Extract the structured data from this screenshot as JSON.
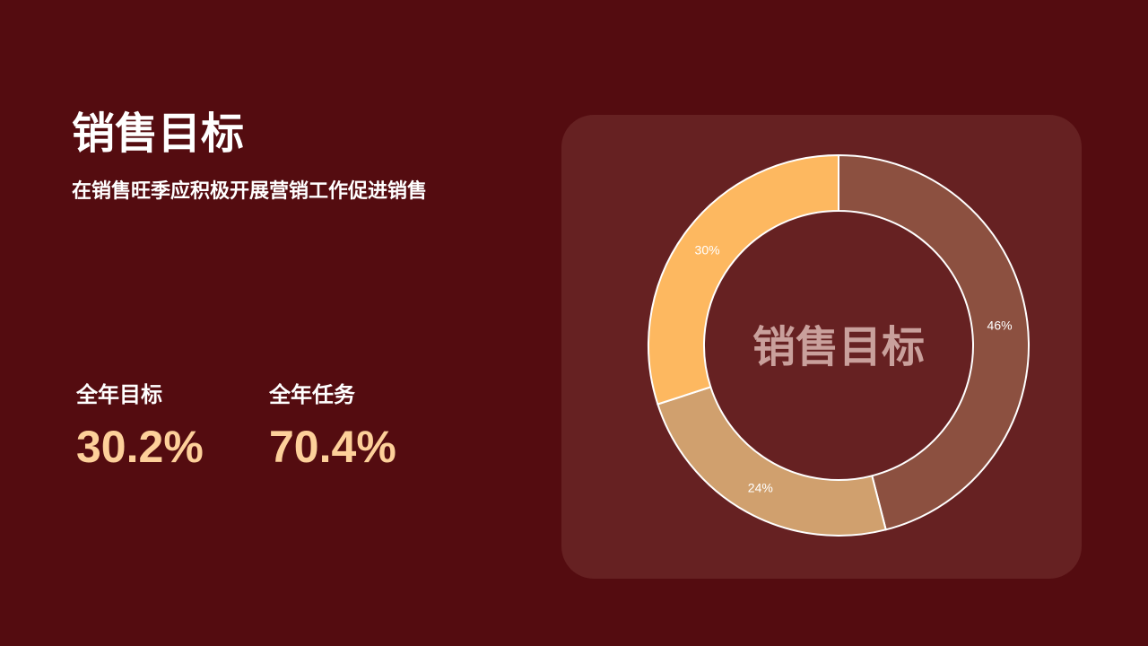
{
  "header": {
    "title": "销售目标",
    "subtitle": "在销售旺季应积极开展营销工作促进销售"
  },
  "stats": [
    {
      "label": "全年目标",
      "value": "30.2%"
    },
    {
      "label": "全年任务",
      "value": "70.4%"
    }
  ],
  "chart_data": {
    "type": "pie",
    "donut": true,
    "center_label": "销售目标",
    "values": [
      46,
      24,
      30
    ],
    "labels": [
      "46%",
      "24%",
      "30%"
    ],
    "colors": [
      "#8c5040",
      "#d0a06e",
      "#fdb860"
    ],
    "center_label_color": "#c9a09c",
    "data_label_color": "#ffffff"
  }
}
